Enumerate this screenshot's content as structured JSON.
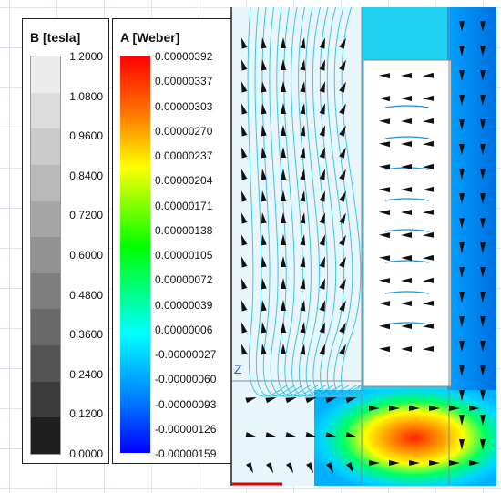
{
  "legend_b": {
    "title": "B [tesla]",
    "ticks": [
      "1.2000",
      "1.0800",
      "0.9600",
      "0.8400",
      "0.7200",
      "0.6000",
      "0.4800",
      "0.3600",
      "0.2400",
      "0.1200",
      "0.0000"
    ],
    "shades": [
      "#ececec",
      "#dcdcdc",
      "#cbcbcb",
      "#b9b9b9",
      "#a6a6a6",
      "#929292",
      "#7e7e7e",
      "#696969",
      "#545454",
      "#3c3c3c",
      "#1f1f1f"
    ]
  },
  "legend_a": {
    "title": "A [Weber]",
    "ticks": [
      "0.00000392",
      "0.00000337",
      "0.00000303",
      "0.00000270",
      "0.00000237",
      "0.00000204",
      "0.00000171",
      "0.00000138",
      "0.00000105",
      "0.00000072",
      "0.00000039",
      "0.00000006",
      "-0.00000027",
      "-0.00000060",
      "-0.00000093",
      "-0.00000126",
      "-0.00000159"
    ]
  },
  "plot": {
    "axis_label": "Z",
    "colors": {
      "background": "#e8f6fb",
      "contour": "#39c6e8",
      "field": "#1b8fdc",
      "hot": "#ff3b00",
      "core": "#ffffff"
    }
  }
}
